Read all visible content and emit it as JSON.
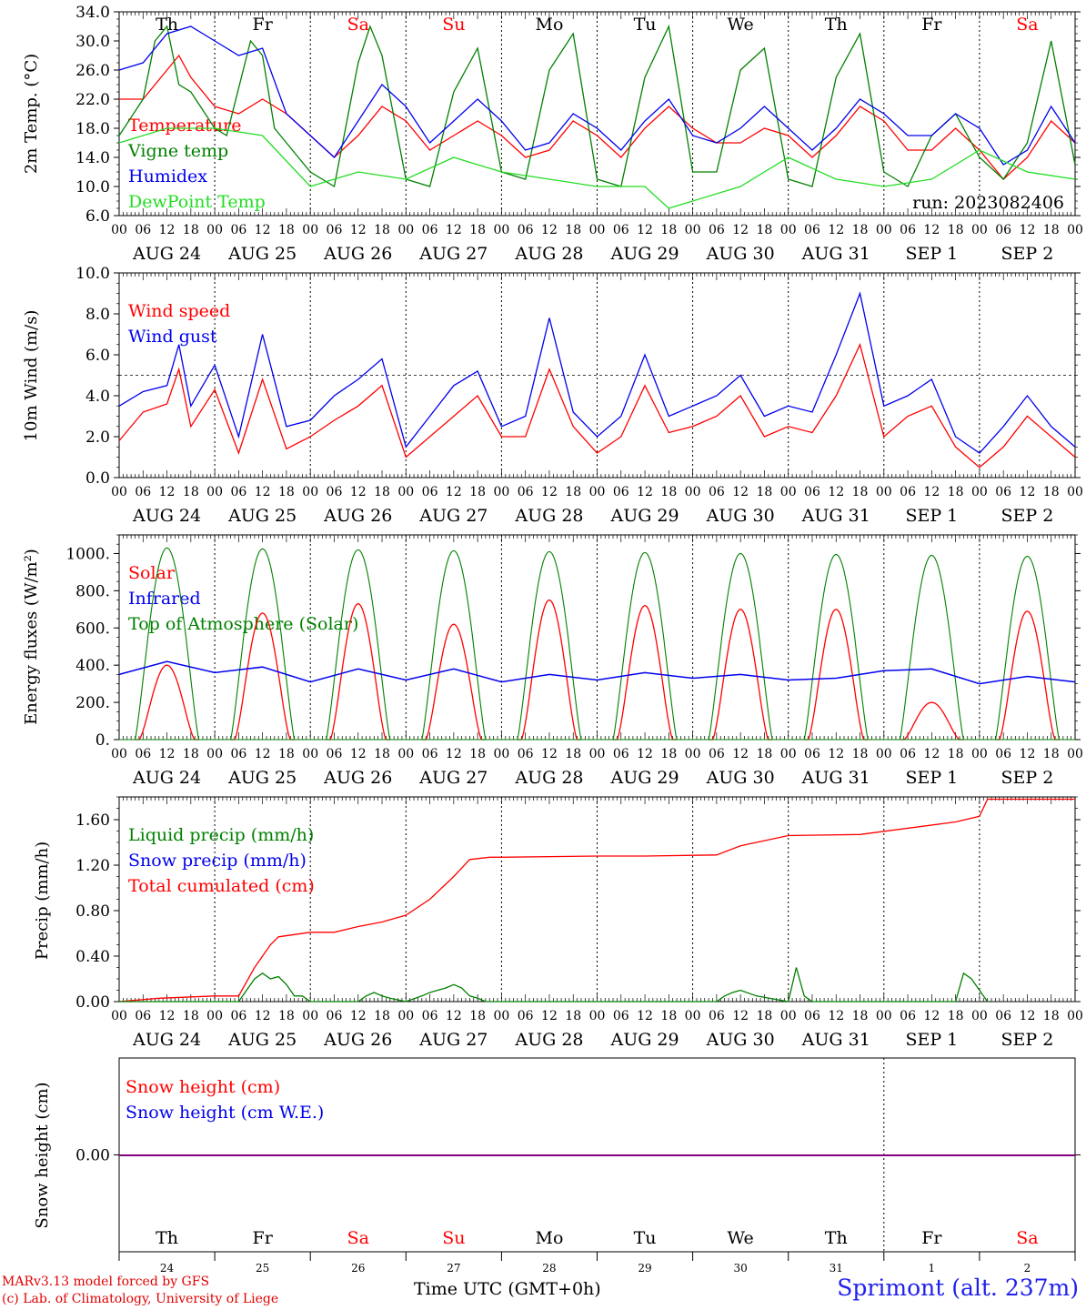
{
  "run_label": "run: 2023082406",
  "footer": {
    "model": "MARv3.13 model forced by GFS",
    "lab": "(c) Lab. of Climatology, University of Liege",
    "time_label": "Time UTC (GMT+0h)",
    "station": "Sprimont (alt. 237m)"
  },
  "days": [
    {
      "name": "Th",
      "date": "AUG 24",
      "num": "24",
      "weekend": false
    },
    {
      "name": "Fr",
      "date": "AUG 25",
      "num": "25",
      "weekend": false
    },
    {
      "name": "Sa",
      "date": "AUG 26",
      "num": "26",
      "weekend": true
    },
    {
      "name": "Su",
      "date": "AUG 27",
      "num": "27",
      "weekend": true
    },
    {
      "name": "Mo",
      "date": "AUG 28",
      "num": "28",
      "weekend": false
    },
    {
      "name": "Tu",
      "date": "AUG 29",
      "num": "29",
      "weekend": false
    },
    {
      "name": "We",
      "date": "AUG 30",
      "num": "30",
      "weekend": false
    },
    {
      "name": "Th",
      "date": "AUG 31",
      "num": "31",
      "weekend": false
    },
    {
      "name": "Fr",
      "date": "SEP  1",
      "num": "1",
      "weekend": false
    },
    {
      "name": "Sa",
      "date": "SEP  2",
      "num": "2",
      "weekend": true
    }
  ],
  "hour_ticks": [
    "00",
    "06",
    "12",
    "18"
  ],
  "colors": {
    "red": "#ff0000",
    "blue": "#0000ee",
    "green": "#008000",
    "lightgreen": "#22dd22",
    "weekend": "#ff0000",
    "purple": "#800080"
  },
  "chart_data": [
    {
      "type": "line",
      "ylabel": "2m Temp. (°C)",
      "ylim": [
        6,
        34
      ],
      "yticks": [
        "6.0",
        "10.0",
        "14.0",
        "18.0",
        "22.0",
        "26.0",
        "30.0",
        "34.0"
      ],
      "ytick_values": [
        6,
        10,
        14,
        18,
        22,
        26,
        30,
        34
      ],
      "x_unit": "hours since AUG 24 00 UTC",
      "legend": [
        {
          "label": "Temperature",
          "color": "#ff0000"
        },
        {
          "label": "Vigne temp",
          "color": "#008000"
        },
        {
          "label": "Humidex",
          "color": "#0000ee"
        },
        {
          "label": "DewPoint Temp",
          "color": "#22dd22"
        }
      ],
      "series": [
        {
          "name": "Temperature",
          "color": "#ff0000",
          "x": [
            0,
            6,
            12,
            15,
            18,
            24,
            30,
            36,
            42,
            48,
            54,
            60,
            66,
            72,
            78,
            84,
            90,
            96,
            102,
            108,
            114,
            120,
            126,
            132,
            138,
            144,
            150,
            156,
            162,
            168,
            174,
            180,
            186,
            192,
            198,
            204,
            210,
            216,
            222,
            228,
            234,
            240
          ],
          "values": [
            22,
            22,
            26,
            28,
            25,
            21,
            20,
            22,
            20,
            17,
            14,
            17,
            21,
            19,
            15,
            17,
            19,
            17,
            14,
            15,
            19,
            17,
            14,
            18,
            21,
            18,
            16,
            16,
            18,
            17,
            14,
            17,
            21,
            19,
            15,
            15,
            18,
            15,
            11,
            14,
            19,
            16
          ]
        },
        {
          "name": "Vigne temp",
          "color": "#008000",
          "x": [
            0,
            6,
            9,
            12,
            15,
            18,
            24,
            27,
            33,
            36,
            39,
            42,
            48,
            54,
            60,
            63,
            66,
            72,
            78,
            84,
            90,
            96,
            102,
            108,
            114,
            120,
            126,
            132,
            138,
            144,
            150,
            156,
            162,
            168,
            174,
            180,
            186,
            192,
            198,
            204,
            210,
            216,
            222,
            228,
            234,
            240
          ],
          "values": [
            17,
            22,
            30,
            32,
            24,
            23,
            18,
            17,
            30,
            28,
            18,
            16,
            12,
            10,
            27,
            32,
            28,
            11,
            10,
            23,
            29,
            12,
            11,
            26,
            31,
            11,
            10,
            25,
            32,
            12,
            12,
            26,
            29,
            11,
            10,
            25,
            31,
            12,
            10,
            17,
            20,
            14,
            11,
            16,
            30,
            13
          ]
        },
        {
          "name": "Humidex",
          "color": "#0000ee",
          "x": [
            0,
            6,
            12,
            18,
            24,
            30,
            36,
            42,
            48,
            54,
            60,
            66,
            72,
            78,
            84,
            90,
            96,
            102,
            108,
            114,
            120,
            126,
            132,
            138,
            144,
            150,
            156,
            162,
            168,
            174,
            180,
            186,
            192,
            198,
            204,
            210,
            216,
            222,
            228,
            234,
            240
          ],
          "values": [
            26,
            27,
            31,
            32,
            30,
            28,
            29,
            20,
            17,
            14,
            19,
            24,
            21,
            16,
            19,
            22,
            19,
            15,
            16,
            20,
            18,
            15,
            19,
            22,
            17,
            16,
            18,
            21,
            18,
            15,
            18,
            22,
            20,
            17,
            17,
            20,
            18,
            13,
            15,
            21,
            16
          ]
        },
        {
          "name": "DewPoint Temp",
          "color": "#22dd22",
          "x": [
            0,
            12,
            24,
            36,
            48,
            60,
            72,
            84,
            96,
            108,
            120,
            132,
            138,
            144,
            156,
            168,
            180,
            192,
            204,
            216,
            228,
            240
          ],
          "values": [
            16,
            18,
            18,
            17,
            10,
            12,
            11,
            14,
            12,
            11,
            10,
            10,
            7,
            8,
            10,
            14,
            11,
            10,
            11,
            15,
            12,
            11
          ]
        }
      ]
    },
    {
      "type": "line",
      "ylabel": "10m Wind (m/s)",
      "ylim": [
        0,
        10
      ],
      "yticks": [
        "0.0",
        "2.0",
        "4.0",
        "6.0",
        "8.0",
        "10.0"
      ],
      "ytick_values": [
        0,
        2,
        4,
        6,
        8,
        10
      ],
      "hline": 5,
      "x_unit": "hours since AUG 24 00 UTC",
      "legend": [
        {
          "label": "Wind speed",
          "color": "#ff0000"
        },
        {
          "label": "Wind gust",
          "color": "#0000ee"
        }
      ],
      "series": [
        {
          "name": "Wind speed",
          "color": "#ff0000",
          "x": [
            0,
            6,
            12,
            15,
            18,
            24,
            30,
            36,
            42,
            48,
            54,
            60,
            66,
            72,
            78,
            84,
            90,
            96,
            102,
            108,
            114,
            120,
            126,
            132,
            138,
            144,
            150,
            156,
            162,
            168,
            174,
            180,
            186,
            192,
            198,
            204,
            210,
            216,
            222,
            228,
            234,
            240
          ],
          "values": [
            1.8,
            3.2,
            3.6,
            5.3,
            2.5,
            4.3,
            1.2,
            4.8,
            1.4,
            2.0,
            2.8,
            3.5,
            4.5,
            1.0,
            2.0,
            3.0,
            4.0,
            2.0,
            2.0,
            5.3,
            2.5,
            1.2,
            2.0,
            4.5,
            2.2,
            2.5,
            3.0,
            4.0,
            2.0,
            2.5,
            2.2,
            4.0,
            6.5,
            2.0,
            3.0,
            3.5,
            1.5,
            0.5,
            1.5,
            3.0,
            2.0,
            1.0
          ]
        },
        {
          "name": "Wind gust",
          "color": "#0000ee",
          "x": [
            0,
            6,
            12,
            15,
            18,
            24,
            30,
            36,
            42,
            48,
            54,
            60,
            66,
            72,
            78,
            84,
            90,
            96,
            102,
            108,
            114,
            120,
            126,
            132,
            138,
            144,
            150,
            156,
            162,
            168,
            174,
            180,
            186,
            192,
            198,
            204,
            210,
            216,
            222,
            228,
            234,
            240
          ],
          "values": [
            3.5,
            4.2,
            4.5,
            6.5,
            3.5,
            5.5,
            2.0,
            7.0,
            2.5,
            2.8,
            4.0,
            4.8,
            5.8,
            1.5,
            3.0,
            4.5,
            5.2,
            2.5,
            3.0,
            7.8,
            3.2,
            2.0,
            3.0,
            6.0,
            3.0,
            3.5,
            4.0,
            5.0,
            3.0,
            3.5,
            3.2,
            6.0,
            9.0,
            3.5,
            4.0,
            4.8,
            2.0,
            1.2,
            2.5,
            4.0,
            2.5,
            1.5
          ]
        }
      ]
    },
    {
      "type": "line",
      "ylabel": "Energy fluxes (W/m²)",
      "ylim": [
        0,
        1100
      ],
      "yticks": [
        "0.",
        "200.",
        "400.",
        "600.",
        "800.",
        "1000."
      ],
      "ytick_values": [
        0,
        200,
        400,
        600,
        800,
        1000
      ],
      "x_unit": "hours since AUG 24 00 UTC",
      "legend": [
        {
          "label": "Solar",
          "color": "#ff0000"
        },
        {
          "label": "Infrared",
          "color": "#0000ee"
        },
        {
          "label": "Top of Atmosphere (Solar)",
          "color": "#008000"
        }
      ],
      "toa_peaks": [
        1030,
        1025,
        1020,
        1015,
        1010,
        1005,
        1000,
        995,
        990,
        985
      ],
      "solar_peaks": [
        400,
        680,
        730,
        620,
        750,
        720,
        700,
        700,
        200,
        690
      ],
      "infrared": {
        "x": [
          0,
          12,
          24,
          36,
          48,
          60,
          72,
          84,
          96,
          108,
          120,
          132,
          144,
          156,
          168,
          180,
          192,
          204,
          216,
          228,
          240
        ],
        "values": [
          350,
          420,
          360,
          390,
          310,
          380,
          320,
          380,
          310,
          350,
          320,
          360,
          330,
          350,
          320,
          330,
          370,
          380,
          300,
          340,
          310
        ]
      }
    },
    {
      "type": "line",
      "ylabel": "Precip (mm/h)",
      "ylim": [
        0,
        1.8
      ],
      "yticks": [
        "0.00",
        "0.40",
        "0.80",
        "1.20",
        "1.60"
      ],
      "ytick_values": [
        0,
        0.4,
        0.8,
        1.2,
        1.6
      ],
      "x_unit": "hours since AUG 24 00 UTC",
      "legend": [
        {
          "label": "Liquid precip (mm/h)",
          "color": "#008000"
        },
        {
          "label": "Snow precip (mm/h)",
          "color": "#0000ee"
        },
        {
          "label": "Total cumulated (cm)",
          "color": "#ff0000"
        }
      ],
      "series": [
        {
          "name": "Total cumulated (cm)",
          "color": "#ff0000",
          "x": [
            0,
            10,
            24,
            30,
            34,
            38,
            40,
            48,
            54,
            60,
            66,
            72,
            78,
            84,
            88,
            93,
            96,
            120,
            132,
            150,
            156,
            168,
            186,
            210,
            216,
            218,
            240
          ],
          "values": [
            0,
            0.03,
            0.05,
            0.05,
            0.3,
            0.5,
            0.57,
            0.61,
            0.61,
            0.66,
            0.7,
            0.76,
            0.9,
            1.1,
            1.25,
            1.27,
            1.27,
            1.28,
            1.28,
            1.29,
            1.37,
            1.46,
            1.47,
            1.58,
            1.63,
            1.78,
            1.78
          ]
        },
        {
          "name": "Liquid precip (mm/h)",
          "color": "#008000",
          "x": [
            0,
            30,
            32,
            34,
            36,
            38,
            40,
            42,
            44,
            46,
            48,
            60,
            62,
            64,
            66,
            68,
            72,
            76,
            78,
            80,
            82,
            84,
            86,
            88,
            90,
            92,
            150,
            152,
            154,
            156,
            160,
            168,
            170,
            172,
            174,
            176,
            210,
            212,
            214,
            216,
            218
          ],
          "values": [
            0,
            0,
            0.1,
            0.2,
            0.25,
            0.2,
            0.22,
            0.15,
            0.05,
            0.05,
            0,
            0,
            0.05,
            0.08,
            0.05,
            0.03,
            0,
            0.05,
            0.08,
            0.1,
            0.12,
            0.15,
            0.12,
            0.05,
            0.03,
            0,
            0,
            0.05,
            0.08,
            0.1,
            0.05,
            0,
            0.3,
            0.05,
            0,
            0,
            0,
            0.25,
            0.2,
            0.1,
            0
          ]
        }
      ]
    },
    {
      "type": "line",
      "ylabel": "Snow height (cm)",
      "yticks": [
        "0.00"
      ],
      "ytick_values": [
        0
      ],
      "x_unit": "hours since AUG 24 00 UTC",
      "legend": [
        {
          "label": "Snow height (cm)",
          "color": "#ff0000"
        },
        {
          "label": "Snow height (cm W.E.)",
          "color": "#0000ee"
        }
      ],
      "series": [
        {
          "name": "Snow height",
          "color": "#800080",
          "x": [
            0,
            240
          ],
          "values": [
            0,
            0
          ]
        }
      ]
    }
  ]
}
